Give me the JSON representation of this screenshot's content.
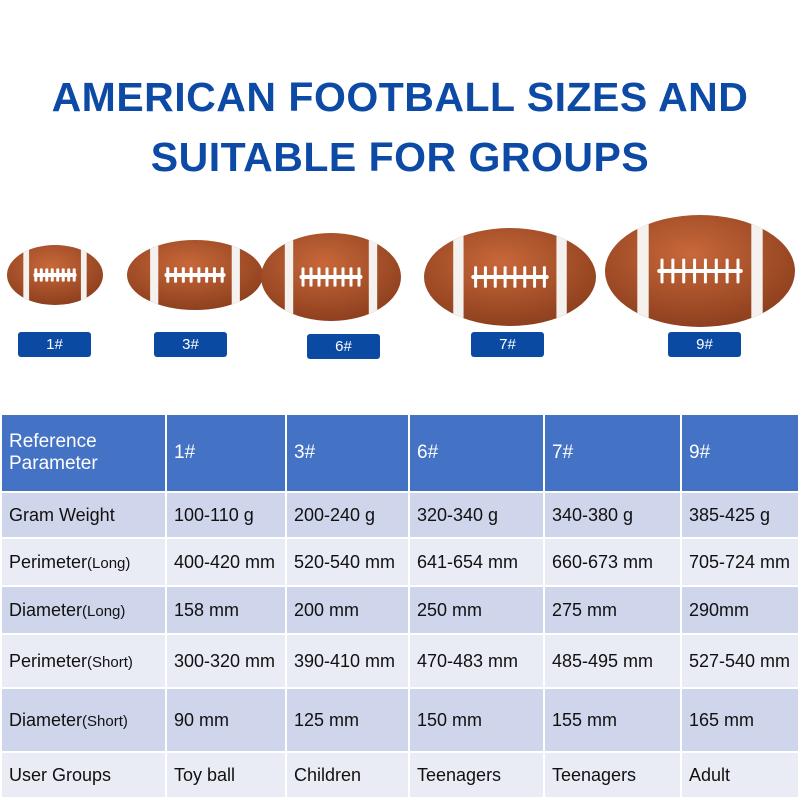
{
  "title": {
    "line1": "AMERICAN FOOTBALL SIZES AND",
    "line2": "SUITABLE FOR GROUPS"
  },
  "sizes": [
    "1#",
    "3#",
    "6#",
    "7#",
    "9#"
  ],
  "table": {
    "header": [
      "Reference Parameter",
      "1#",
      "3#",
      "6#",
      "7#",
      "9#"
    ],
    "rows": [
      {
        "label": "Gram Weight",
        "sub": "",
        "values": [
          "100-110 g",
          "200-240 g",
          "320-340 g",
          "340-380 g",
          "385-425 g"
        ]
      },
      {
        "label": "Perimeter",
        "sub": "(Long)",
        "values": [
          "400-420 mm",
          "520-540 mm",
          "641-654 mm",
          "660-673 mm",
          "705-724 mm"
        ]
      },
      {
        "label": "Diameter",
        "sub": "(Long)",
        "values": [
          "158 mm",
          "200 mm",
          "250 mm",
          "275 mm",
          "290mm"
        ]
      },
      {
        "label": "Perimeter",
        "sub": "(Short)",
        "values": [
          "300-320 mm",
          "390-410 mm",
          "470-483 mm",
          "485-495 mm",
          "527-540 mm"
        ]
      },
      {
        "label": "Diameter",
        "sub": "(Short)",
        "values": [
          "90 mm",
          "125 mm",
          "150 mm",
          "155 mm",
          "165 mm"
        ]
      },
      {
        "label": "User Groups",
        "sub": "",
        "values": [
          "Toy ball",
          "Children",
          "Teenagers",
          "Teenagers",
          "Adult"
        ]
      }
    ]
  }
}
